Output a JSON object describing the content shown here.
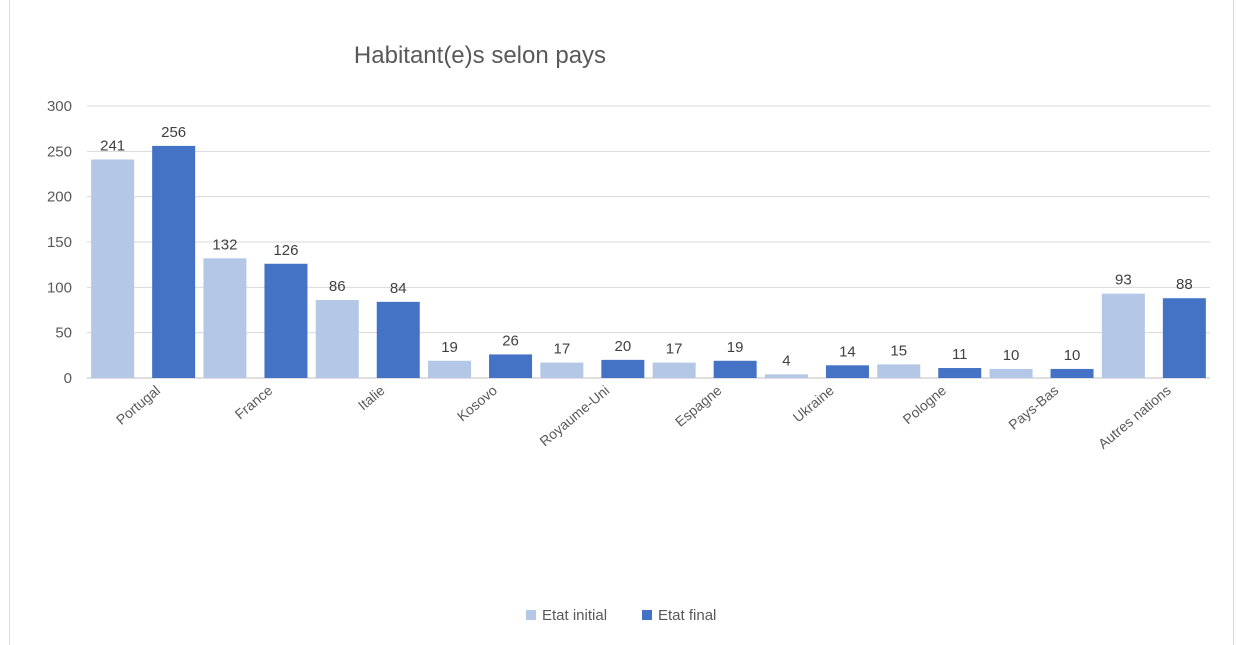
{
  "colors": {
    "initial": "#b4c7e7",
    "final": "#4472c4",
    "gridline": "#d9d9d9",
    "axis": "#bfbfbf"
  },
  "chart_data": {
    "type": "bar",
    "title": "Habitant(e)s selon pays",
    "xlabel": "",
    "ylabel": "",
    "categories": [
      "Portugal",
      "France",
      "Italie",
      "Kosovo",
      "Royaume-Uni",
      "Espagne",
      "Ukraine",
      "Pologne",
      "Pays-Bas",
      "Autres nations"
    ],
    "series": [
      {
        "name": "Etat initial",
        "color": "#b4c7e7",
        "values": [
          241,
          132,
          86,
          19,
          17,
          17,
          4,
          15,
          10,
          93
        ]
      },
      {
        "name": "Etat final",
        "color": "#4472c4",
        "values": [
          256,
          126,
          84,
          26,
          20,
          19,
          14,
          11,
          10,
          88
        ]
      }
    ],
    "ylim": [
      0,
      300
    ],
    "yticks": [
      0,
      50,
      100,
      150,
      200,
      250,
      300
    ],
    "grid": true,
    "data_labels": true,
    "legend": "bottom"
  }
}
